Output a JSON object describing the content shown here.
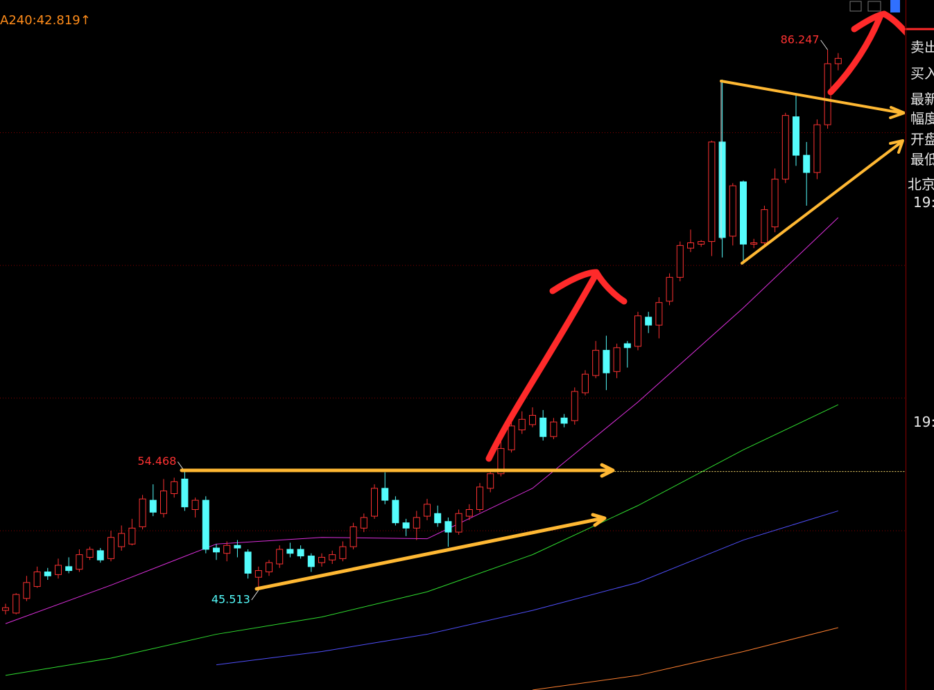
{
  "chart_data": {
    "type": "candlestick",
    "title": "A240:42.819↑",
    "open": [
      44.0,
      43.8,
      44.9,
      45.8,
      46.9,
      46.7,
      47.3,
      47.1,
      48.0,
      48.5,
      47.9,
      48.8,
      49.0,
      50.3,
      52.3,
      51.3,
      52.8,
      53.9,
      51.6,
      52.3,
      48.7,
      48.3,
      48.9,
      48.4,
      46.5,
      46.9,
      47.5,
      48.6,
      48.6,
      48.1,
      47.6,
      47.8,
      47.9,
      48.8,
      50.2,
      51.1,
      53.2,
      52.3,
      50.6,
      50.2,
      51.1,
      51.3,
      50.7,
      49.9,
      51.1,
      51.6,
      53.2,
      54.3,
      56.1,
      57.6,
      58.0,
      58.5,
      57.1,
      58.5,
      58.3,
      60.4,
      61.7,
      63.6,
      62.0,
      64.1,
      63.9,
      66.1,
      65.5,
      67.3,
      69.1,
      71.3,
      71.6,
      71.8,
      79.3,
      72.2,
      76.3,
      71.6,
      71.7,
      72.9,
      76.5,
      81.2,
      78.3,
      77.0,
      80.6,
      85.2
    ],
    "high": [
      44.5,
      45.3,
      46.6,
      47.3,
      47.2,
      47.9,
      48.0,
      48.6,
      48.8,
      48.7,
      50.0,
      50.4,
      50.9,
      52.7,
      53.5,
      53.9,
      54.0,
      54.468,
      52.5,
      52.6,
      49.0,
      49.2,
      49.3,
      48.6,
      47.3,
      47.8,
      48.9,
      49.1,
      48.9,
      48.3,
      48.3,
      48.5,
      49.2,
      50.6,
      51.3,
      53.5,
      54.4,
      52.6,
      50.9,
      51.5,
      52.4,
      51.9,
      51.0,
      51.6,
      52.0,
      53.6,
      54.6,
      57.3,
      58.5,
      59.0,
      59.3,
      59.1,
      58.5,
      58.8,
      60.8,
      62.1,
      64.3,
      64.7,
      64.1,
      64.3,
      66.5,
      66.5,
      67.6,
      69.4,
      71.8,
      72.7,
      71.9,
      79.4,
      84.0,
      76.2,
      76.4,
      72.0,
      74.5,
      77.3,
      81.5,
      82.8,
      79.3,
      81.0,
      86.247,
      86.0
    ],
    "low": [
      43.7,
      43.7,
      44.7,
      45.7,
      46.3,
      46.4,
      46.8,
      46.9,
      47.8,
      47.6,
      47.7,
      48.5,
      48.9,
      50.1,
      51.1,
      51.0,
      52.5,
      51.5,
      51.0,
      48.3,
      47.8,
      47.7,
      48.0,
      46.4,
      45.513,
      46.6,
      47.2,
      48.0,
      47.9,
      46.9,
      47.3,
      47.5,
      47.7,
      48.6,
      49.9,
      50.9,
      52.0,
      50.4,
      49.6,
      49.3,
      50.8,
      50.3,
      48.8,
      49.7,
      50.8,
      51.4,
      52.9,
      54.1,
      55.9,
      57.3,
      57.8,
      56.8,
      56.9,
      57.8,
      58.0,
      60.2,
      61.5,
      60.6,
      61.5,
      62.3,
      63.6,
      64.9,
      64.5,
      67.0,
      68.8,
      71.0,
      71.4,
      70.7,
      70.6,
      71.5,
      70.1,
      71.3,
      71.5,
      72.5,
      76.2,
      77.5,
      74.5,
      76.5,
      80.3,
      84.7
    ],
    "close": [
      44.2,
      45.2,
      46.1,
      46.9,
      46.6,
      47.4,
      47.0,
      48.2,
      48.6,
      47.8,
      49.5,
      49.8,
      50.2,
      52.4,
      51.4,
      53.0,
      53.7,
      51.8,
      52.3,
      48.6,
      48.4,
      48.9,
      48.7,
      46.8,
      47.0,
      47.6,
      48.6,
      48.3,
      48.1,
      47.3,
      48.0,
      48.2,
      48.8,
      50.3,
      51.0,
      53.2,
      52.3,
      50.6,
      50.2,
      51.0,
      52.0,
      50.6,
      49.9,
      51.3,
      51.6,
      53.3,
      54.3,
      56.2,
      57.9,
      58.4,
      58.7,
      57.1,
      58.2,
      58.1,
      60.5,
      61.8,
      63.6,
      61.9,
      63.8,
      63.8,
      66.2,
      65.5,
      67.2,
      69.1,
      71.5,
      71.7,
      71.8,
      79.3,
      72.1,
      76.0,
      71.6,
      71.7,
      74.2,
      76.5,
      81.3,
      78.3,
      77.0,
      80.6,
      85.2,
      85.6
    ],
    "up_color": "#ff3232",
    "down_color": "#54fcfc",
    "ylim": [
      38,
      90
    ],
    "yticks": [
      50,
      60,
      70,
      80
    ],
    "grid": true,
    "ma_lines": [
      {
        "color": "#e030e0",
        "x": [
          0,
          10,
          20,
          30,
          40,
          50,
          60,
          70,
          79
        ],
        "values": [
          43.0,
          45.9,
          49.0,
          49.5,
          49.4,
          53.2,
          59.7,
          66.8,
          73.6
        ]
      },
      {
        "color": "#30e030",
        "x": [
          0,
          10,
          20,
          30,
          40,
          50,
          60,
          70,
          79
        ],
        "values": [
          39.1,
          40.4,
          42.2,
          43.5,
          45.4,
          48.2,
          51.9,
          56.1,
          59.5
        ]
      },
      {
        "color": "#5050ff",
        "x": [
          0,
          10,
          20,
          30,
          40,
          50,
          60,
          70,
          79
        ],
        "values": [
          null,
          null,
          39.9,
          40.9,
          42.2,
          44.0,
          46.1,
          49.3,
          51.5
        ]
      },
      {
        "color": "#ff8030",
        "x": [
          0,
          10,
          20,
          30,
          40,
          50,
          60,
          70,
          79
        ],
        "values": [
          null,
          null,
          null,
          null,
          null,
          38.0,
          39.1,
          40.9,
          42.7
        ]
      }
    ],
    "annotations": [
      {
        "text": "86.247",
        "value": 86.247,
        "color": "#ff3232"
      },
      {
        "text": "54.468",
        "value": 54.468,
        "color": "#ff3232"
      },
      {
        "text": "45.513",
        "value": 45.513,
        "color": "#54fcfc"
      }
    ]
  },
  "side_panel": {
    "labels": [
      "卖出",
      "买入",
      "最新",
      "幅度",
      "开盘",
      "最低",
      "北京",
      "19:",
      "19:"
    ]
  }
}
